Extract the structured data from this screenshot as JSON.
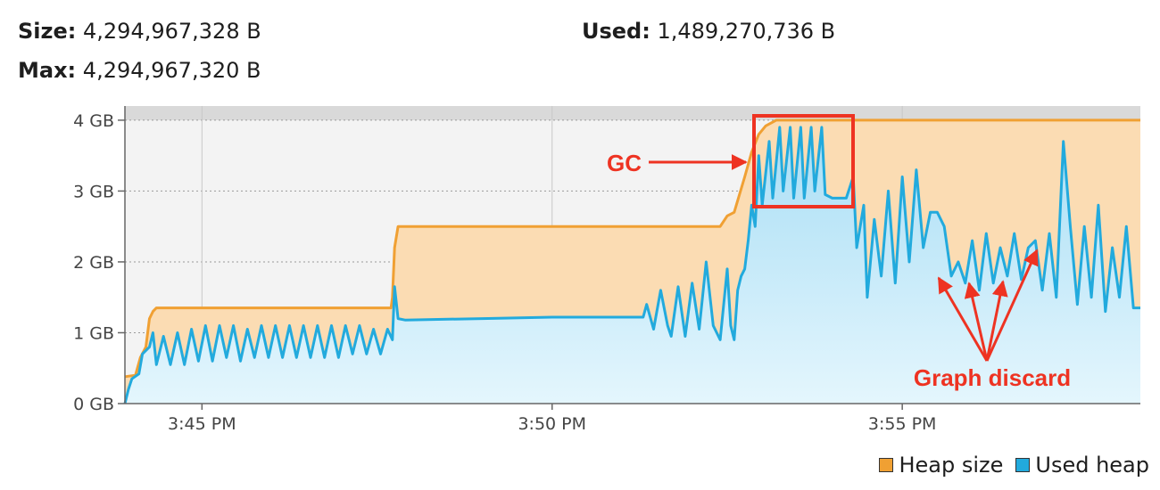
{
  "stats": {
    "size_label": "Size:",
    "size_value": "4,294,967,328 B",
    "used_label": "Used:",
    "used_value": "1,489,270,736 B",
    "max_label": "Max:",
    "max_value": "4,294,967,320 B"
  },
  "chart_data": {
    "type": "area",
    "x_range_minutes": [
      3.9,
      18.4
    ],
    "x_ticks": [
      {
        "value": 5,
        "label": "3:45 PM"
      },
      {
        "value": 10,
        "label": "3:50 PM"
      },
      {
        "value": 15,
        "label": "3:55 PM"
      }
    ],
    "y_range": [
      0,
      4.2
    ],
    "y_ticks": [
      {
        "value": 0,
        "label": "0 GB"
      },
      {
        "value": 1,
        "label": "1 GB"
      },
      {
        "value": 2,
        "label": "2 GB"
      },
      {
        "value": 3,
        "label": "3 GB"
      },
      {
        "value": 4,
        "label": "4 GB"
      }
    ],
    "grid": true,
    "legend_position": "bottom-right",
    "series": [
      {
        "name": "Heap size",
        "color": "#f0a033",
        "fill": "#fbdcb3",
        "points": [
          [
            3.9,
            0.38
          ],
          [
            4.05,
            0.4
          ],
          [
            4.12,
            0.65
          ],
          [
            4.2,
            0.8
          ],
          [
            4.25,
            1.2
          ],
          [
            4.3,
            1.3
          ],
          [
            4.35,
            1.35
          ],
          [
            7.7,
            1.35
          ],
          [
            7.72,
            1.5
          ],
          [
            7.75,
            2.2
          ],
          [
            7.8,
            2.5
          ],
          [
            12.4,
            2.5
          ],
          [
            12.5,
            2.65
          ],
          [
            12.6,
            2.7
          ],
          [
            12.75,
            3.2
          ],
          [
            12.85,
            3.55
          ],
          [
            12.95,
            3.8
          ],
          [
            13.05,
            3.92
          ],
          [
            13.2,
            4.0
          ],
          [
            18.4,
            4.0
          ]
        ]
      },
      {
        "name": "Used heap",
        "color": "#22aadd",
        "fill": "#c8ecfa",
        "points": [
          [
            3.9,
            0.0
          ],
          [
            3.95,
            0.2
          ],
          [
            4.0,
            0.35
          ],
          [
            4.1,
            0.42
          ],
          [
            4.15,
            0.7
          ],
          [
            4.25,
            0.8
          ],
          [
            4.3,
            1.0
          ],
          [
            4.35,
            0.55
          ],
          [
            4.45,
            0.95
          ],
          [
            4.55,
            0.55
          ],
          [
            4.65,
            1.0
          ],
          [
            4.75,
            0.55
          ],
          [
            4.85,
            1.05
          ],
          [
            4.95,
            0.6
          ],
          [
            5.05,
            1.1
          ],
          [
            5.15,
            0.6
          ],
          [
            5.25,
            1.1
          ],
          [
            5.35,
            0.65
          ],
          [
            5.45,
            1.1
          ],
          [
            5.55,
            0.6
          ],
          [
            5.65,
            1.05
          ],
          [
            5.75,
            0.65
          ],
          [
            5.85,
            1.1
          ],
          [
            5.95,
            0.65
          ],
          [
            6.05,
            1.1
          ],
          [
            6.15,
            0.65
          ],
          [
            6.25,
            1.1
          ],
          [
            6.35,
            0.65
          ],
          [
            6.45,
            1.1
          ],
          [
            6.55,
            0.65
          ],
          [
            6.65,
            1.1
          ],
          [
            6.75,
            0.65
          ],
          [
            6.85,
            1.1
          ],
          [
            6.95,
            0.65
          ],
          [
            7.05,
            1.1
          ],
          [
            7.15,
            0.7
          ],
          [
            7.25,
            1.1
          ],
          [
            7.35,
            0.7
          ],
          [
            7.45,
            1.05
          ],
          [
            7.55,
            0.7
          ],
          [
            7.65,
            1.05
          ],
          [
            7.72,
            0.9
          ],
          [
            7.75,
            1.65
          ],
          [
            7.8,
            1.2
          ],
          [
            7.9,
            1.18
          ],
          [
            9.0,
            1.2
          ],
          [
            10.0,
            1.22
          ],
          [
            11.3,
            1.22
          ],
          [
            11.35,
            1.4
          ],
          [
            11.45,
            1.05
          ],
          [
            11.55,
            1.6
          ],
          [
            11.65,
            1.1
          ],
          [
            11.7,
            0.95
          ],
          [
            11.8,
            1.65
          ],
          [
            11.9,
            0.95
          ],
          [
            12.0,
            1.7
          ],
          [
            12.1,
            1.05
          ],
          [
            12.2,
            2.0
          ],
          [
            12.3,
            1.1
          ],
          [
            12.4,
            0.9
          ],
          [
            12.5,
            1.9
          ],
          [
            12.55,
            1.1
          ],
          [
            12.6,
            0.9
          ],
          [
            12.65,
            1.6
          ],
          [
            12.7,
            1.8
          ],
          [
            12.75,
            1.9
          ],
          [
            12.8,
            2.3
          ],
          [
            12.85,
            2.8
          ],
          [
            12.9,
            2.5
          ],
          [
            12.95,
            3.5
          ],
          [
            13.0,
            2.8
          ],
          [
            13.1,
            3.7
          ],
          [
            13.15,
            2.9
          ],
          [
            13.25,
            3.9
          ],
          [
            13.3,
            3.0
          ],
          [
            13.4,
            3.9
          ],
          [
            13.45,
            2.9
          ],
          [
            13.55,
            3.9
          ],
          [
            13.6,
            2.9
          ],
          [
            13.7,
            3.9
          ],
          [
            13.75,
            3.0
          ],
          [
            13.85,
            3.9
          ],
          [
            13.9,
            2.95
          ],
          [
            14.0,
            2.9
          ],
          [
            14.2,
            2.9
          ],
          [
            14.3,
            3.2
          ],
          [
            14.35,
            2.2
          ],
          [
            14.45,
            2.8
          ],
          [
            14.5,
            1.5
          ],
          [
            14.6,
            2.6
          ],
          [
            14.7,
            1.8
          ],
          [
            14.8,
            3.0
          ],
          [
            14.9,
            1.7
          ],
          [
            15.0,
            3.2
          ],
          [
            15.1,
            2.0
          ],
          [
            15.2,
            3.3
          ],
          [
            15.3,
            2.2
          ],
          [
            15.4,
            2.7
          ],
          [
            15.5,
            2.7
          ],
          [
            15.6,
            2.5
          ],
          [
            15.7,
            1.8
          ],
          [
            15.8,
            2.0
          ],
          [
            15.9,
            1.7
          ],
          [
            16.0,
            2.3
          ],
          [
            16.1,
            1.6
          ],
          [
            16.2,
            2.4
          ],
          [
            16.3,
            1.7
          ],
          [
            16.4,
            2.2
          ],
          [
            16.5,
            1.8
          ],
          [
            16.6,
            2.4
          ],
          [
            16.7,
            1.75
          ],
          [
            16.8,
            2.2
          ],
          [
            16.9,
            2.3
          ],
          [
            17.0,
            1.6
          ],
          [
            17.1,
            2.4
          ],
          [
            17.2,
            1.5
          ],
          [
            17.3,
            3.7
          ],
          [
            17.4,
            2.5
          ],
          [
            17.5,
            1.4
          ],
          [
            17.6,
            2.5
          ],
          [
            17.7,
            1.5
          ],
          [
            17.8,
            2.8
          ],
          [
            17.9,
            1.3
          ],
          [
            18.0,
            2.2
          ],
          [
            18.1,
            1.5
          ],
          [
            18.2,
            2.5
          ],
          [
            18.3,
            1.35
          ],
          [
            18.4,
            1.35
          ]
        ]
      }
    ],
    "annotations": {
      "gc_label": "GC",
      "discard_label": "Graph discard",
      "color": "#ee3322"
    }
  },
  "legend": {
    "heap_size_label": "Heap size",
    "used_heap_label": "Used heap"
  }
}
